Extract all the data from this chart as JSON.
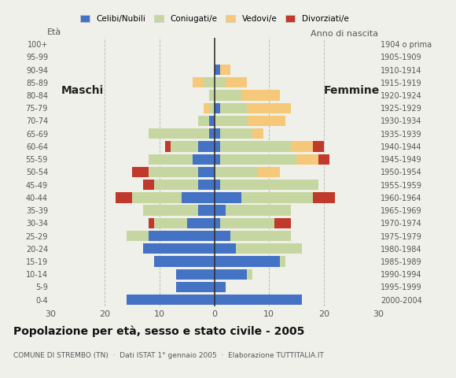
{
  "age_groups": [
    "0-4",
    "5-9",
    "10-14",
    "15-19",
    "20-24",
    "25-29",
    "30-34",
    "35-39",
    "40-44",
    "45-49",
    "50-54",
    "55-59",
    "60-64",
    "65-69",
    "70-74",
    "75-79",
    "80-84",
    "85-89",
    "90-94",
    "95-99",
    "100+"
  ],
  "birth_years": [
    "2000-2004",
    "1995-1999",
    "1990-1994",
    "1985-1989",
    "1980-1984",
    "1975-1979",
    "1970-1974",
    "1965-1969",
    "1960-1964",
    "1955-1959",
    "1950-1954",
    "1945-1949",
    "1940-1944",
    "1935-1939",
    "1930-1934",
    "1925-1929",
    "1920-1924",
    "1915-1919",
    "1910-1914",
    "1905-1909",
    "1904 o prima"
  ],
  "colors": {
    "celibe": "#4472c4",
    "coniugato": "#c5d6a0",
    "vedovo": "#f5c87a",
    "divorziato": "#c0392b"
  },
  "males": {
    "celibe": [
      16,
      7,
      7,
      11,
      13,
      12,
      5,
      3,
      6,
      3,
      3,
      4,
      3,
      1,
      1,
      0,
      0,
      0,
      0,
      0,
      0
    ],
    "coniugato": [
      0,
      0,
      0,
      0,
      0,
      4,
      6,
      10,
      9,
      8,
      9,
      8,
      5,
      11,
      2,
      1,
      1,
      2,
      0,
      0,
      0
    ],
    "vedovo": [
      0,
      0,
      0,
      0,
      0,
      0,
      0,
      0,
      0,
      0,
      0,
      0,
      0,
      0,
      0,
      1,
      0,
      2,
      0,
      0,
      0
    ],
    "divorziato": [
      0,
      0,
      0,
      0,
      0,
      0,
      1,
      0,
      3,
      2,
      3,
      0,
      1,
      0,
      0,
      0,
      0,
      0,
      0,
      0,
      0
    ]
  },
  "females": {
    "nubile": [
      16,
      2,
      6,
      12,
      4,
      3,
      1,
      2,
      5,
      1,
      0,
      1,
      1,
      1,
      0,
      1,
      0,
      0,
      1,
      0,
      0
    ],
    "coniugata": [
      0,
      0,
      1,
      1,
      12,
      11,
      10,
      12,
      13,
      18,
      8,
      14,
      13,
      6,
      6,
      5,
      5,
      2,
      0,
      0,
      0
    ],
    "vedova": [
      0,
      0,
      0,
      0,
      0,
      0,
      0,
      0,
      0,
      0,
      4,
      4,
      4,
      2,
      7,
      8,
      7,
      4,
      2,
      0,
      0
    ],
    "divorziata": [
      0,
      0,
      0,
      0,
      0,
      0,
      3,
      0,
      4,
      0,
      0,
      2,
      2,
      0,
      0,
      0,
      0,
      0,
      0,
      0,
      0
    ]
  },
  "xlim": 30,
  "title": "Popolazione per età, sesso e stato civile - 2005",
  "subtitle": "COMUNE DI STREMBO (TN)  ·  Dati ISTAT 1° gennaio 2005  ·  Elaborazione TUTTITALIA.IT",
  "legend_labels": [
    "Celibi/Nubili",
    "Coniugati/e",
    "Vedovi/e",
    "Divorziati/e"
  ],
  "bg_color": "#f0f0eb",
  "grid_color": "#bbbbbb"
}
